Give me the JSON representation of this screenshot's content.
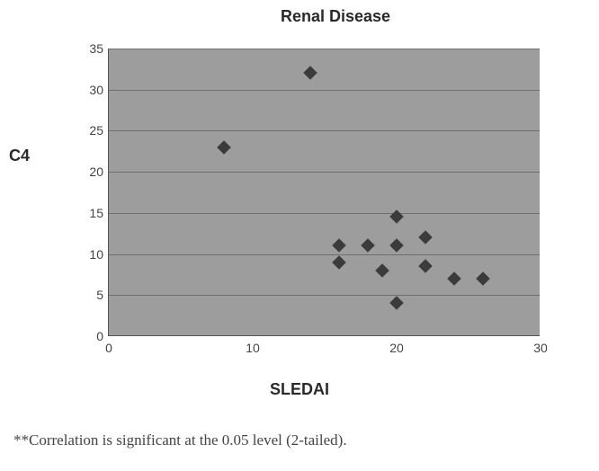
{
  "chart": {
    "type": "scatter",
    "title": "Renal Disease",
    "title_fontsize": 18,
    "xlabel": "SLEDAI",
    "ylabel": "C4",
    "label_fontsize": 18,
    "xlim": [
      0,
      30
    ],
    "ylim": [
      0,
      35
    ],
    "xtick_step": 10,
    "ytick_step": 5,
    "xticks": [
      0,
      10,
      20,
      30
    ],
    "yticks": [
      0,
      5,
      10,
      15,
      20,
      25,
      30,
      35
    ],
    "background_color": "#9d9d9d",
    "grid_color": "#6f6f6f",
    "axis_color": "#555555",
    "tick_font_color": "#444444",
    "tick_fontsize": 14,
    "marker_style": "diamond",
    "marker_size": 11,
    "marker_color": "#3b3b3b",
    "points": [
      {
        "x": 8,
        "y": 23
      },
      {
        "x": 14,
        "y": 32
      },
      {
        "x": 16,
        "y": 9
      },
      {
        "x": 16,
        "y": 11
      },
      {
        "x": 18,
        "y": 11
      },
      {
        "x": 19,
        "y": 8
      },
      {
        "x": 20,
        "y": 4
      },
      {
        "x": 20,
        "y": 11
      },
      {
        "x": 20,
        "y": 14.5
      },
      {
        "x": 22,
        "y": 8.5
      },
      {
        "x": 22,
        "y": 12
      },
      {
        "x": 24,
        "y": 7
      },
      {
        "x": 26,
        "y": 7
      }
    ]
  },
  "footnote": "**Correlation is significant at the 0.05 level (2-tailed)."
}
